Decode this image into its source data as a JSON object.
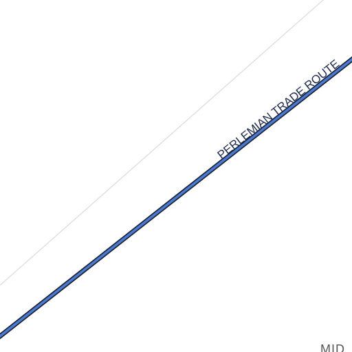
{
  "map": {
    "route_label": "PERLEMIAN TRADE ROUTE",
    "region_label": "MID",
    "colors": {
      "background": "#ffffff",
      "route_fill": "#4a7bd0",
      "route_outline": "#1a1f33",
      "grid_line": "#e0e0e0",
      "route_text": "#1e2a4a",
      "region_text": "#555555"
    },
    "icons": []
  }
}
